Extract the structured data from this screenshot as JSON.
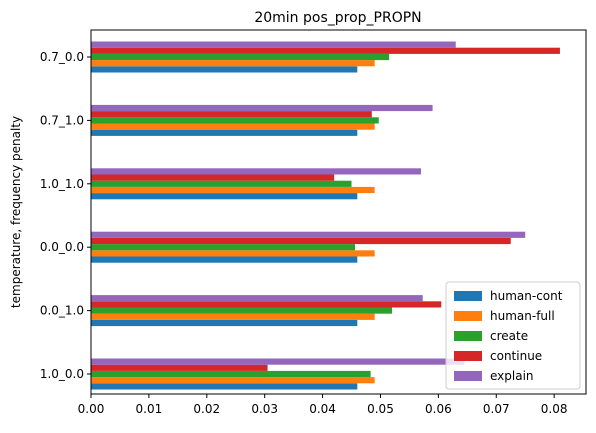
{
  "chart_data": {
    "type": "bar",
    "orientation": "horizontal",
    "title": "20min pos_prop_PROPN",
    "xlabel": "",
    "ylabel": "temperature, frequency penalty",
    "categories": [
      "1.0_0.0",
      "0.0_1.0",
      "0.0_0.0",
      "1.0_1.0",
      "0.7_1.0",
      "0.7_0.0"
    ],
    "xlim": [
      0,
      0.0855
    ],
    "xticks": [
      "0.00",
      "0.01",
      "0.02",
      "0.03",
      "0.04",
      "0.05",
      "0.06",
      "0.07",
      "0.08"
    ],
    "xtick_values": [
      0,
      0.01,
      0.02,
      0.03,
      0.04,
      0.05,
      0.06,
      0.07,
      0.08
    ],
    "grid": false,
    "legend_position": "bottom-right",
    "series": [
      {
        "name": "human-cont",
        "color": "#1f77b4",
        "values": [
          0.046,
          0.046,
          0.046,
          0.046,
          0.046,
          0.046
        ]
      },
      {
        "name": "human-full",
        "color": "#ff7f0e",
        "values": [
          0.049,
          0.049,
          0.049,
          0.049,
          0.049,
          0.049
        ]
      },
      {
        "name": "create",
        "color": "#2ca02c",
        "values": [
          0.0483,
          0.052,
          0.0456,
          0.045,
          0.0497,
          0.0515
        ]
      },
      {
        "name": "continue",
        "color": "#d62728",
        "values": [
          0.0305,
          0.0605,
          0.0725,
          0.042,
          0.0485,
          0.081
        ]
      },
      {
        "name": "explain",
        "color": "#9467bd",
        "values": [
          0.0645,
          0.0573,
          0.075,
          0.057,
          0.059,
          0.063
        ]
      }
    ]
  }
}
